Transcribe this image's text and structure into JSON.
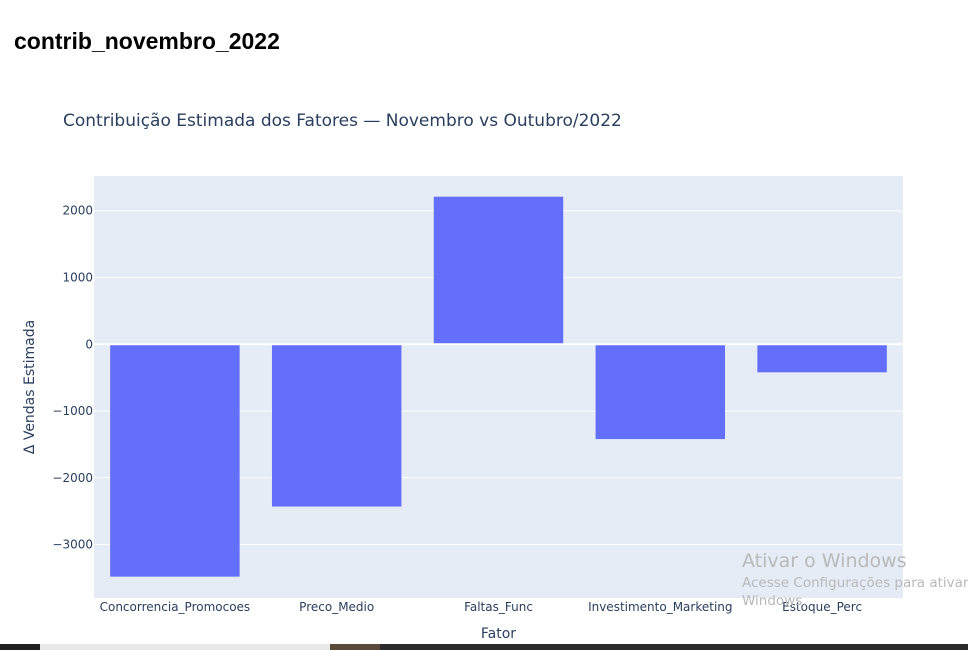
{
  "page": {
    "heading": "contrib_novembro_2022"
  },
  "watermark": {
    "title": "Ativar o Windows",
    "line1": "Acesse Configurações para ativar o",
    "line2": "Windows."
  },
  "colors": {
    "bar": "#636efa",
    "plot_bg": "#e5ecf6",
    "grid": "#ffffff",
    "text": "#2a3f5f"
  },
  "chart_data": {
    "type": "bar",
    "title": "Contribuição Estimada dos Fatores — Novembro vs Outubro/2022",
    "xlabel": "Fator",
    "ylabel": "Δ Vendas Estimada",
    "categories": [
      "Concorrencia_Promocoes",
      "Preco_Medio",
      "Faltas_Func",
      "Investimento_Marketing",
      "Estoque_Perc"
    ],
    "values": [
      -3480,
      -2430,
      2210,
      -1420,
      -420
    ],
    "ylim": [
      -3800,
      2520
    ],
    "yticks": [
      -3000,
      -2000,
      -1000,
      0,
      1000,
      2000
    ],
    "ytick_labels": [
      "−3000",
      "−2000",
      "−1000",
      "0",
      "1000",
      "2000"
    ],
    "grid": true,
    "legend": "none"
  }
}
